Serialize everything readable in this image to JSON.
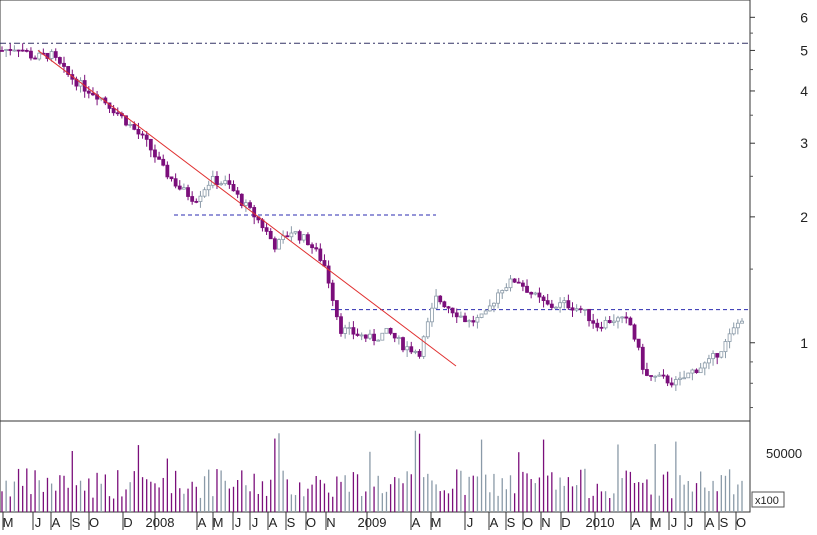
{
  "chart_data": {
    "type": "candlestick",
    "scale": "log",
    "ylim": [
      0.65,
      6.6
    ],
    "price_ticks": [
      {
        "value": 6,
        "label": "6"
      },
      {
        "value": 5,
        "label": "5"
      },
      {
        "value": 4,
        "label": "4"
      },
      {
        "value": 3,
        "label": "3"
      },
      {
        "value": 2,
        "label": "2"
      },
      {
        "value": 1,
        "label": "1"
      }
    ],
    "x_ticks": [
      "M",
      "J",
      "A",
      "S",
      "O",
      "D",
      "2008",
      "A",
      "M",
      "J",
      "J",
      "A",
      "S",
      "O",
      "N",
      "2009",
      "A",
      "M",
      "J",
      "A",
      "S",
      "O",
      "N",
      "D",
      "2010",
      "A",
      "M",
      "J",
      "J",
      "A",
      "S",
      "O"
    ],
    "colors": {
      "up": "#8a9aa8",
      "down": "#7b0f7b",
      "trendline": "#e03030",
      "level": "#2b2bb0",
      "grid": "#333333"
    },
    "trendline": {
      "from_date": "2007-07",
      "from_price": 5.0,
      "to_date": "2009-06",
      "to_price": 0.88
    },
    "horizontal_levels": [
      {
        "value": 5.2,
        "style": "dash-dot",
        "span": "full"
      },
      {
        "value": 2.02,
        "style": "dashed",
        "from_date": "2008-02",
        "to_date": "2009-05"
      },
      {
        "value": 1.2,
        "style": "dashed",
        "from_date": "2008-11",
        "to_date": "2010-11"
      }
    ],
    "price_path": [
      5.0,
      5.1,
      4.8,
      4.9,
      4.4,
      4.1,
      3.9,
      3.6,
      3.3,
      3.0,
      2.6,
      2.35,
      2.2,
      2.45,
      2.4,
      2.15,
      1.95,
      1.7,
      1.85,
      1.75,
      1.55,
      1.08,
      1.05,
      1.02,
      1.06,
      0.98,
      0.95,
      1.28,
      1.2,
      1.12,
      1.15,
      1.35,
      1.42,
      1.3,
      1.22,
      1.24,
      1.2,
      1.1,
      1.14,
      1.12,
      0.83,
      0.82,
      0.8,
      0.86,
      0.9,
      1.0,
      1.15
    ],
    "volume": {
      "label": "50000",
      "value": 50000,
      "unit_label": "x100",
      "max": 80000
    }
  }
}
